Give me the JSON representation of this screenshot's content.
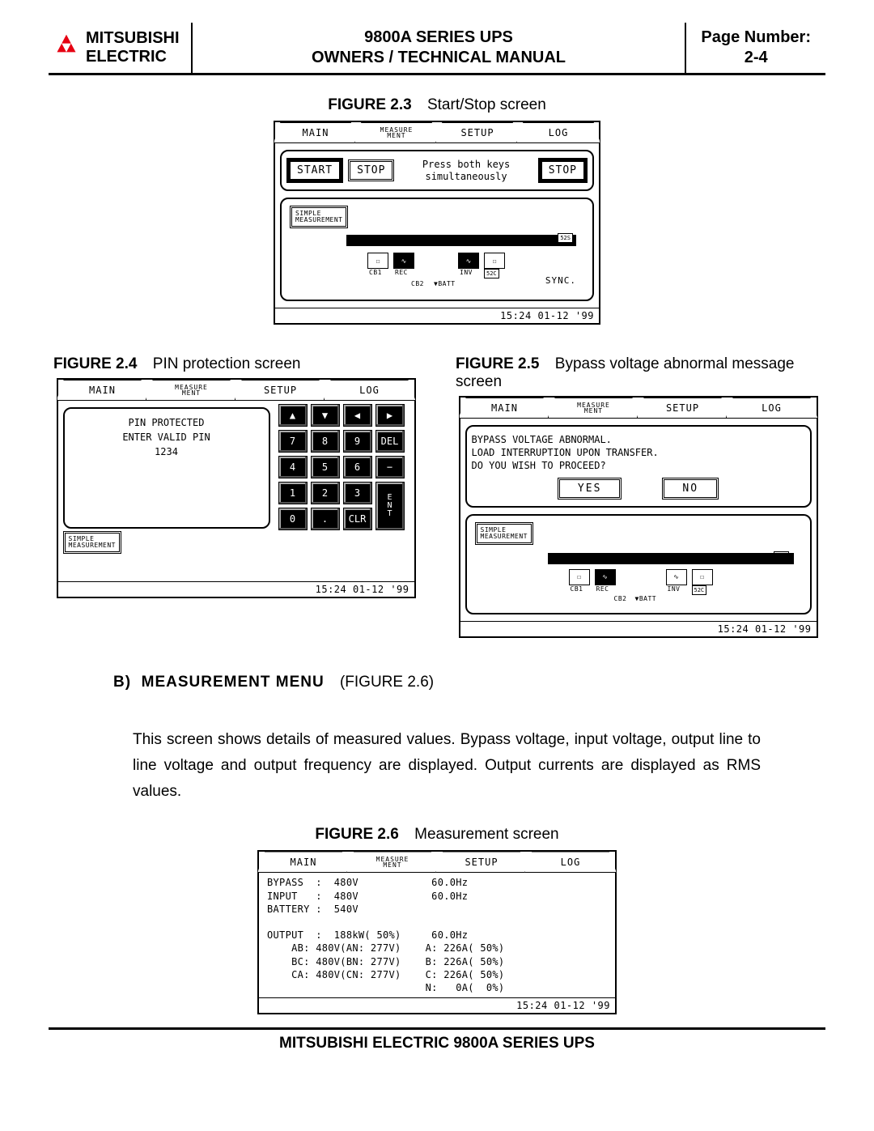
{
  "header": {
    "brand_line1": "MITSUBISHI",
    "brand_line2": "ELECTRIC",
    "title_line1": "9800A SERIES UPS",
    "title_line2": "OWNERS / TECHNICAL MANUAL",
    "page_label": "Page Number:",
    "page_value": "2-4",
    "logo_color": "#e60012"
  },
  "tabs": {
    "main": "MAIN",
    "measure_l1": "MEASURE",
    "measure_l2": "MENT",
    "setup": "SETUP",
    "log": "LOG"
  },
  "fig23": {
    "caption_no": "FIGURE 2.3",
    "caption_txt": "Start/Stop screen",
    "start": "START",
    "stop": "STOP",
    "msg_l1": "Press both keys",
    "msg_l2": "simultaneously",
    "simple_meas_l1": "SIMPLE",
    "simple_meas_l2": "MEASUREMENT",
    "sync": "SYNC.",
    "cb1": "CB1",
    "rec": "REC",
    "cb2": "CB2",
    "batt": "BATT",
    "inv": "INV",
    "s52s": "52S",
    "s52c": "52C",
    "time": "15:24 01-12 '99"
  },
  "fig24": {
    "caption_no": "FIGURE 2.4",
    "caption_txt": "PIN protection screen",
    "pin_l1": "PIN PROTECTED",
    "pin_l2": "ENTER VALID PIN",
    "pin_l3": "1234",
    "keys": [
      "▲",
      "▼",
      "◀",
      "▶",
      "7",
      "8",
      "9",
      "DEL",
      "4",
      "5",
      "6",
      "−",
      "1",
      "2",
      "3",
      "E\nN\nT",
      "0",
      ".",
      "CLR"
    ],
    "time": "15:24 01-12 '99"
  },
  "fig25": {
    "caption_no": "FIGURE 2.5",
    "caption_txt": "Bypass voltage abnormal message screen",
    "l1": "BYPASS VOLTAGE ABNORMAL.",
    "l2": "LOAD INTERRUPTION UPON TRANSFER.",
    "l3": "DO YOU WISH TO PROCEED?",
    "yes": "YES",
    "no": "NO",
    "time": "15:24 01-12 '99"
  },
  "sectionB": {
    "head_letter": "B)",
    "head_title": "MEASUREMENT MENU",
    "head_ref": "(FIGURE 2.6)",
    "body": "This screen shows details of measured values. Bypass voltage, input voltage, output line to line voltage and output frequency are displayed. Output currents are displayed as RMS values."
  },
  "fig26": {
    "caption_no": "FIGURE 2.6",
    "caption_txt": "Measurement screen",
    "text": "BYPASS  :  480V            60.0Hz\nINPUT   :  480V            60.0Hz\nBATTERY :  540V\n\nOUTPUT  :  188kW( 50%)     60.0Hz\n    AB: 480V(AN: 277V)    A: 226A( 50%)\n    BC: 480V(BN: 277V)    B: 226A( 50%)\n    CA: 480V(CN: 277V)    C: 226A( 50%)\n                          N:   0A(  0%)",
    "time": "15:24 01-12 '99"
  },
  "footer": "MITSUBISHI ELECTRIC 9800A SERIES UPS"
}
